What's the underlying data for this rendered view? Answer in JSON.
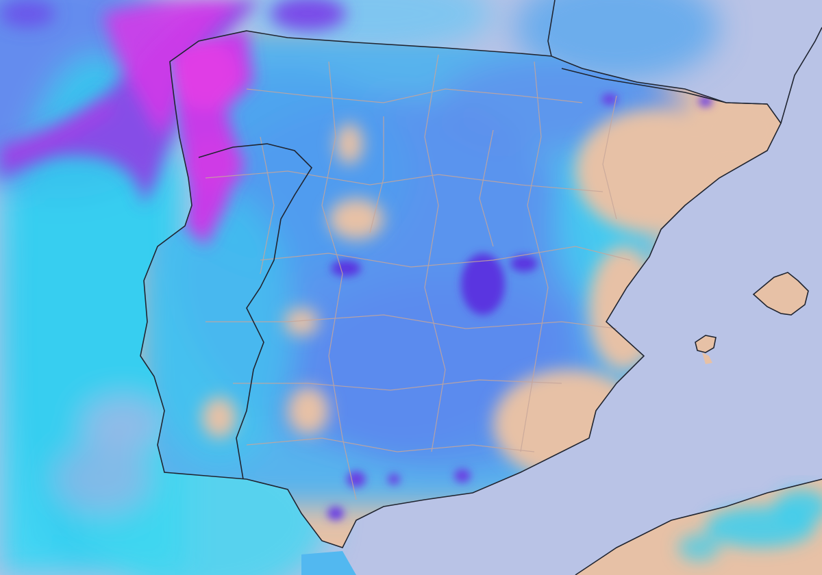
{
  "map": {
    "colors": {
      "sea": "#b9c3e6",
      "land_dry": "#e8c3a8",
      "precip_light": "#36d6f2",
      "precip_mid": "#5a8ef0",
      "precip_heavy": "#5a3fe6",
      "precip_extreme": "#e23ce8",
      "border_country": "#1f2430",
      "border_region": "#c7a69a"
    },
    "regions": [
      "iberian-peninsula",
      "balearic-islands",
      "north-africa-coast"
    ],
    "labels": []
  }
}
